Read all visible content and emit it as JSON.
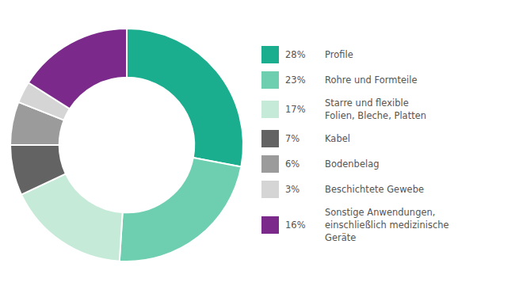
{
  "chart_data": {
    "type": "doughnut",
    "categories": [
      "Profile",
      "Rohre und Formteile",
      "Starre und flexible\nFolien, Bleche, Platten",
      "Kabel",
      "Bodenbelag",
      "Beschichtete Gewebe",
      "Sonstige Anwendungen,\neinschließlich medizinische\nGeräte"
    ],
    "values": [
      28,
      23,
      17,
      7,
      6,
      3,
      16
    ],
    "value_labels": [
      "28%",
      "23%",
      "17%",
      "7%",
      "6%",
      "3%",
      "16%"
    ],
    "colors": [
      "#1AAD8E",
      "#6ECFB0",
      "#C5EAD8",
      "#636363",
      "#9B9B9B",
      "#D5D5D5",
      "#7B2A8C"
    ],
    "legend": "right"
  }
}
